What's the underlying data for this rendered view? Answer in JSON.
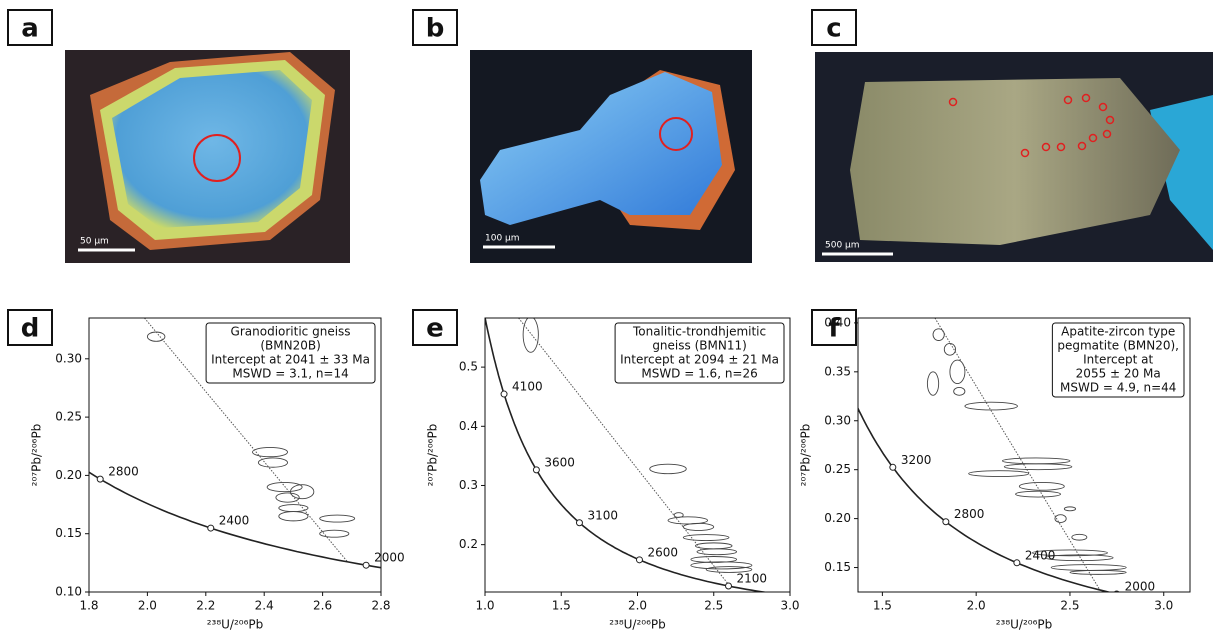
{
  "panels": [
    {
      "label": "a",
      "scale": "50 µm"
    },
    {
      "label": "b",
      "scale": "100 µm"
    },
    {
      "label": "c",
      "scale": "500 µm"
    }
  ],
  "chart_data": [
    {
      "type": "concordia",
      "label": "d",
      "xlabel": "²³⁸U/²⁰⁶Pb",
      "ylabel": "²⁰⁷Pb/²⁰⁶Pb",
      "xlim": [
        1.8,
        2.8
      ],
      "ylim": [
        0.1,
        0.335
      ],
      "xticks": [
        1.8,
        {
          "value": 2,
          "label": "2.0"
        },
        2.2,
        2.4,
        2.6,
        2.8
      ],
      "yticks": [
        {
          "value": 0.1,
          "label": "0.10"
        },
        0.15,
        {
          "value": 0.2,
          "label": "0.20"
        },
        0.25,
        {
          "value": 0.3,
          "label": "0.30"
        }
      ],
      "legend": [
        "Granodioritic gneiss",
        "(BMN20B)",
        "Intercept at 2041 ± 33 Ma",
        "MSWD = 3.1, n=14"
      ],
      "concordia_ages": [
        2800,
        2400,
        2000
      ],
      "discordia": {
        "x": [
          1.99,
          2.685
        ],
        "y": [
          0.335,
          0.126
        ]
      },
      "ellipses": {
        "x": [
          2.03,
          2.42,
          2.43,
          2.47,
          2.53,
          2.48,
          2.5,
          2.5,
          2.65,
          2.64
        ],
        "y": [
          0.319,
          0.22,
          0.211,
          0.19,
          0.186,
          0.181,
          0.172,
          0.165,
          0.163,
          0.15
        ],
        "rx": [
          0.03,
          0.06,
          0.05,
          0.06,
          0.04,
          0.04,
          0.05,
          0.05,
          0.06,
          0.05
        ],
        "ry": [
          0.004,
          0.004,
          0.004,
          0.004,
          0.006,
          0.004,
          0.003,
          0.004,
          0.003,
          0.003
        ]
      }
    },
    {
      "type": "concordia",
      "label": "e",
      "xlabel": "²³⁸U/²⁰⁶Pb",
      "ylabel": "²⁰⁷Pb/²⁰⁶Pb",
      "xlim": [
        1.0,
        3.0
      ],
      "ylim": [
        0.12,
        0.583
      ],
      "xticks": [
        {
          "value": 1,
          "label": "1.0"
        },
        1.5,
        {
          "value": 2,
          "label": "2.0"
        },
        2.5,
        {
          "value": 3,
          "label": "3.0"
        }
      ],
      "yticks": [
        0.2,
        0.3,
        0.4,
        0.5
      ],
      "legend": [
        "Tonalitic-trondhjemitic",
        "gneiss (BMN11)",
        "Intercept at 2094 ± 21 Ma",
        "MSWD = 1.6, n=26"
      ],
      "concordia_ages": [
        4100,
        3600,
        3100,
        2600,
        2100
      ],
      "discordia": {
        "x": [
          1.22,
          2.605
        ],
        "y": [
          0.583,
          0.13
        ]
      },
      "ellipses": {
        "x": [
          1.3,
          2.2,
          2.27,
          2.33,
          2.4,
          2.45,
          2.5,
          2.52,
          2.5,
          2.55,
          2.6
        ],
        "y": [
          0.555,
          0.328,
          0.25,
          0.241,
          0.23,
          0.212,
          0.198,
          0.188,
          0.175,
          0.165,
          0.158
        ],
        "rx": [
          0.05,
          0.12,
          0.03,
          0.13,
          0.1,
          0.15,
          0.12,
          0.13,
          0.15,
          0.2,
          0.15
        ],
        "ry": [
          0.03,
          0.008,
          0.004,
          0.006,
          0.006,
          0.005,
          0.005,
          0.005,
          0.005,
          0.006,
          0.005
        ]
      }
    },
    {
      "type": "concordia",
      "label": "f",
      "xlabel": "²³⁸U/²⁰⁶Pb",
      "ylabel": "²⁰⁷Pb/²⁰⁶Pb",
      "xlim": [
        1.37,
        3.14
      ],
      "ylim": [
        0.125,
        0.405
      ],
      "xticks": [
        1.5,
        {
          "value": 2,
          "label": "2.0"
        },
        2.5,
        {
          "value": 3,
          "label": "3.0"
        }
      ],
      "yticks": [
        0.15,
        {
          "value": 0.2,
          "label": "0.20"
        },
        0.25,
        {
          "value": 0.3,
          "label": "0.30"
        },
        0.35,
        {
          "value": 0.4,
          "label": "0.40"
        }
      ],
      "legend": [
        "Apatite-zircon type",
        "pegmatite (BMN20),",
        "Intercept at",
        "2055 ± 20 Ma",
        "MSWD = 4.9, n=44"
      ],
      "concordia_ages": [
        3200,
        2800,
        2400,
        2000
      ],
      "discordia": {
        "x": [
          1.78,
          2.66
        ],
        "y": [
          0.405,
          0.127
        ]
      },
      "ellipses": {
        "x": [
          1.8,
          1.77,
          1.86,
          1.9,
          1.91,
          2.08,
          2.32,
          2.33,
          2.12,
          2.35,
          2.33,
          2.5,
          2.45,
          2.55,
          2.5,
          2.55,
          2.6,
          2.65
        ],
        "y": [
          0.388,
          0.338,
          0.373,
          0.35,
          0.33,
          0.315,
          0.259,
          0.253,
          0.246,
          0.233,
          0.225,
          0.21,
          0.2,
          0.181,
          0.165,
          0.16,
          0.15,
          0.145
        ],
        "rx": [
          0.03,
          0.03,
          0.03,
          0.04,
          0.03,
          0.14,
          0.18,
          0.18,
          0.16,
          0.12,
          0.12,
          0.03,
          0.03,
          0.04,
          0.2,
          0.18,
          0.2,
          0.15
        ],
        "ry": [
          0.006,
          0.012,
          0.006,
          0.012,
          0.004,
          0.004,
          0.003,
          0.003,
          0.003,
          0.004,
          0.003,
          0.002,
          0.004,
          0.003,
          0.003,
          0.003,
          0.003,
          0.002
        ]
      }
    }
  ]
}
